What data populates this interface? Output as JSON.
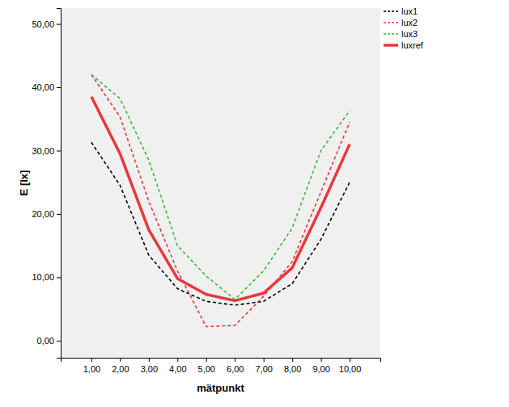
{
  "chart_data": {
    "type": "line",
    "x_label": "mätpunkt",
    "y_label": "E [lx]",
    "categories": [
      "1,00",
      "2,00",
      "3,00",
      "4,00",
      "5,00",
      "6,00",
      "7,00",
      "8,00",
      "9,00",
      "10,00"
    ],
    "series": [
      {
        "name": "lux1",
        "color": "#000000",
        "line_style": "dashed",
        "values": [
          31.3,
          24.5,
          13.5,
          8.2,
          6.2,
          5.6,
          6.2,
          9.0,
          16.0,
          25.0
        ]
      },
      {
        "name": "lux2",
        "color": "#e8383d",
        "line_style": "dashed",
        "values": [
          42.0,
          35.3,
          22.0,
          11.0,
          2.2,
          2.4,
          7.0,
          12.5,
          23.5,
          34.5
        ]
      },
      {
        "name": "lux3",
        "color": "#3cb93c",
        "line_style": "dashed",
        "values": [
          42.0,
          38.2,
          28.5,
          15.0,
          10.2,
          6.5,
          11.0,
          17.8,
          30.0,
          36.3
        ]
      },
      {
        "name": "luxref",
        "color": "#e8383d",
        "line_style": "solid",
        "values": [
          38.5,
          29.5,
          17.5,
          9.8,
          7.3,
          6.3,
          7.5,
          11.5,
          21.0,
          31.0
        ]
      }
    ],
    "ylim": [
      -2.7,
      52.5
    ],
    "yticks": [
      {
        "value": 0,
        "label": "0,00"
      },
      {
        "value": 10,
        "label": "10,00"
      },
      {
        "value": 20,
        "label": "20,00"
      },
      {
        "value": 30,
        "label": "30,00"
      },
      {
        "value": 40,
        "label": "40,00"
      },
      {
        "value": 50,
        "label": "50,00"
      }
    ],
    "grid": false,
    "legend": "top-right"
  }
}
